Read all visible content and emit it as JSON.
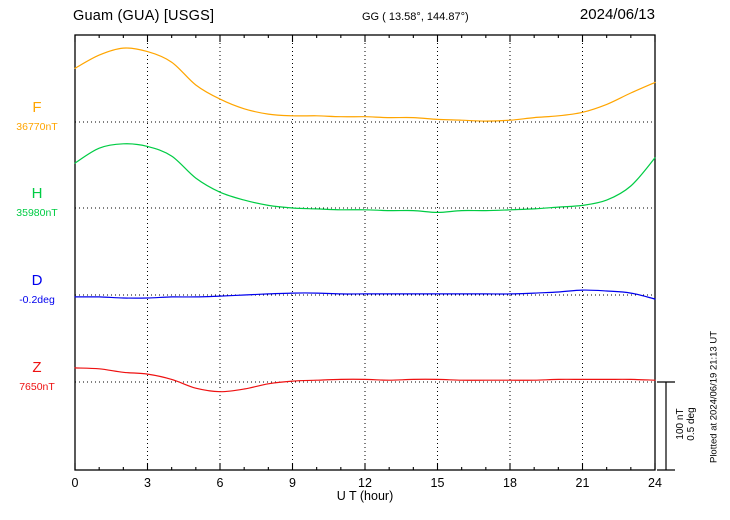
{
  "header": {
    "station": "Guam (GUA)  [USGS]",
    "coords": "GG ( 13.58°, 144.87°)",
    "date": "2024/06/13"
  },
  "axis": {
    "x_label": "U T (hour)",
    "x_ticks": [
      0,
      3,
      6,
      9,
      12,
      15,
      18,
      21,
      24
    ],
    "x_min": 0,
    "x_max": 24
  },
  "scale_bar": {
    "line1": "100 nT",
    "line2": "0.5 deg"
  },
  "footer_note": "Plotted at 2024/06/19 21:13 UT",
  "chart_data": {
    "type": "line",
    "title": "Guam (GUA) [USGS] magnetogram",
    "date": "2024/06/13",
    "x_label": "U T (hour)",
    "x_range": [
      0,
      24
    ],
    "x_ticks": [
      0,
      3,
      6,
      9,
      12,
      15,
      18,
      21,
      24
    ],
    "grid": "dotted vertical lines every 3 hours; dotted horizontal baseline for each trace",
    "scale_per_division": {
      "nT": 100,
      "deg": 0.5
    },
    "x_hours": [
      0,
      1,
      2,
      3,
      4,
      5,
      6,
      7,
      8,
      9,
      10,
      11,
      12,
      13,
      14,
      15,
      16,
      17,
      18,
      19,
      20,
      21,
      22,
      23,
      24
    ],
    "series": [
      {
        "name": "F",
        "unit": "nT",
        "color": "#FFA500",
        "baseline_value": 36770,
        "baseline_label": "36770nT",
        "values": [
          36831,
          36846,
          36854,
          36850,
          36838,
          36812,
          36796,
          36785,
          36779,
          36777,
          36777,
          36776,
          36776,
          36775,
          36775,
          36773,
          36772,
          36771,
          36772,
          36775,
          36777,
          36781,
          36790,
          36803,
          36815
        ]
      },
      {
        "name": "H",
        "unit": "nT",
        "color": "#00CC44",
        "baseline_value": 35980,
        "baseline_label": "35980nT",
        "values": [
          36031,
          36048,
          36053,
          36050,
          36039,
          36014,
          35998,
          35989,
          35983,
          35980,
          35979,
          35978,
          35978,
          35977,
          35977,
          35975,
          35977,
          35977,
          35978,
          35979,
          35981,
          35983,
          35989,
          36005,
          36037
        ]
      },
      {
        "name": "D",
        "unit": "deg",
        "color": "#0000EE",
        "baseline_value": -0.2,
        "baseline_label": "-0.2deg",
        "values": [
          -0.211,
          -0.211,
          -0.217,
          -0.217,
          -0.211,
          -0.211,
          -0.206,
          -0.2,
          -0.194,
          -0.189,
          -0.189,
          -0.194,
          -0.194,
          -0.194,
          -0.194,
          -0.194,
          -0.194,
          -0.194,
          -0.194,
          -0.189,
          -0.183,
          -0.172,
          -0.177,
          -0.189,
          -0.223
        ]
      },
      {
        "name": "Z",
        "unit": "nT",
        "color": "#EE1111",
        "baseline_value": 7650,
        "baseline_label": "7650nT",
        "values": [
          7666,
          7665,
          7661,
          7659,
          7653,
          7643,
          7639,
          7642,
          7648,
          7651,
          7652,
          7653,
          7653,
          7652,
          7653,
          7653,
          7652,
          7652,
          7652,
          7652,
          7653,
          7653,
          7653,
          7653,
          7652
        ]
      }
    ]
  }
}
